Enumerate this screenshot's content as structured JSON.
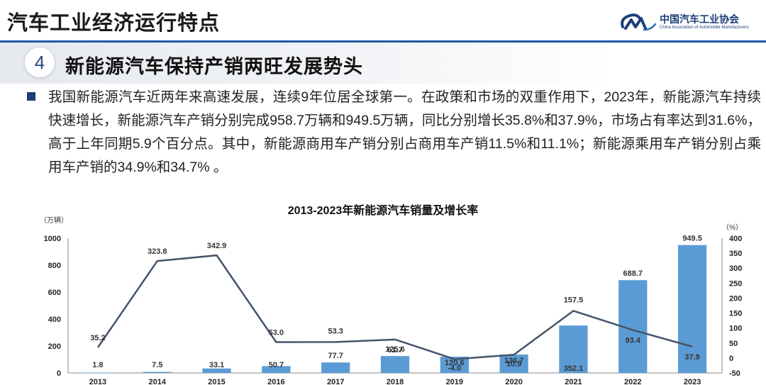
{
  "header": {
    "title": "汽车工业经济运行特点",
    "logo_cn": "中国汽车工业协会",
    "logo_en": "China Association of Automobile Manufacturers"
  },
  "section": {
    "number": "4",
    "title": "新能源汽车保持产销两旺发展势头"
  },
  "paragraph": "我国新能源汽车近两年来高速发展，连续9年位居全球第一。在政策和市场的双重作用下，2023年，新能源汽车持续快速增长，新能源汽车产销分别完成958.7万辆和949.5万辆，同比分别增长35.8%和37.9%，市场占有率达到31.6%，高于上年同期5.9个百分点。其中，新能源商用车产销分别占商用车产销11.5%和11.1%；新能源乘用车产销分别占乘用车产销的34.9%和34.7% 。",
  "colors": {
    "bar": "#5b9bd5",
    "line": "#44546a",
    "header_rule": "#1d5aa6",
    "logo": "#1d3f7a"
  },
  "chart_data": {
    "type": "bar",
    "title": "2013-2023年新能源汽车销量及增长率",
    "categories": [
      "2013",
      "2014",
      "2015",
      "2016",
      "2017",
      "2018",
      "2019",
      "2020",
      "2021",
      "2022",
      "2023"
    ],
    "series": [
      {
        "axis": "left",
        "kind": "bar",
        "values": [
          1.8,
          7.5,
          33.1,
          50.7,
          77.7,
          125.6,
          120.6,
          136.7,
          352.1,
          688.7,
          949.5
        ]
      },
      {
        "axis": "right",
        "kind": "line",
        "values": [
          35.2,
          323.8,
          342.9,
          53.0,
          53.3,
          61.7,
          -4.0,
          10.9,
          157.5,
          93.4,
          37.9
        ]
      }
    ],
    "ylabel": "（万辆）",
    "y2label": "（%）",
    "ylim": [
      0,
      1000
    ],
    "yticks": [
      "0",
      "200",
      "400",
      "600",
      "800",
      "1000"
    ],
    "y2lim": [
      -50,
      400
    ],
    "y2ticks": [
      "-50",
      "0",
      "50",
      "100",
      "150",
      "200",
      "250",
      "300",
      "350",
      "400"
    ],
    "bar_labels": [
      "1.8",
      "7.5",
      "33.1",
      "50.7",
      "77.7",
      "125.6",
      "120.6",
      "136.7",
      "352.1",
      "688.7",
      "949.5"
    ],
    "line_labels": [
      "35.2",
      "323.8",
      "342.9",
      "53.0",
      "53.3",
      "61.7",
      "-4.0",
      "10.9",
      "157.5",
      "93.4",
      "37.9"
    ],
    "grid": false,
    "legend": "none"
  }
}
